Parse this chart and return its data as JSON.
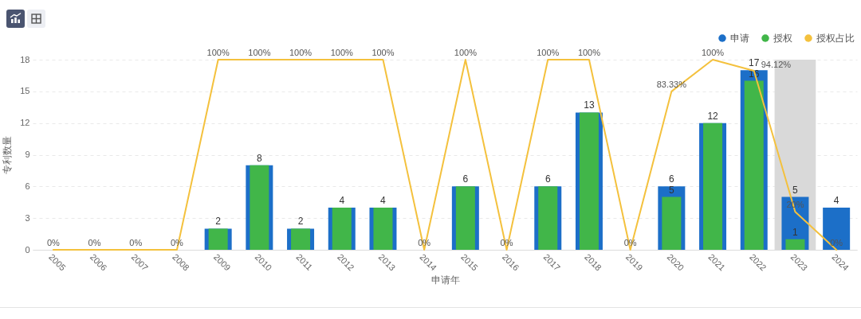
{
  "chart_data": {
    "type": "bar",
    "categories": [
      "2005",
      "2006",
      "2007",
      "2008",
      "2009",
      "2010",
      "2011",
      "2012",
      "2013",
      "2014",
      "2015",
      "2016",
      "2017",
      "2018",
      "2019",
      "2020",
      "2021",
      "2022",
      "2023",
      "2024"
    ],
    "series": [
      {
        "name": "申请",
        "color": "#1c6fc8",
        "values": [
          null,
          null,
          null,
          null,
          2,
          8,
          2,
          4,
          4,
          null,
          6,
          null,
          6,
          13,
          null,
          6,
          12,
          17,
          5,
          4
        ],
        "value_labels": [
          null,
          null,
          null,
          null,
          "2",
          "8",
          "2",
          "4",
          "4",
          null,
          "6",
          null,
          "6",
          "13",
          null,
          "6",
          "12",
          "17",
          "5",
          "4"
        ]
      },
      {
        "name": "授权",
        "color": "#41b649",
        "values": [
          null,
          null,
          null,
          null,
          2,
          8,
          2,
          4,
          4,
          null,
          6,
          null,
          6,
          13,
          null,
          5,
          12,
          16,
          1,
          null
        ],
        "value_labels": [
          null,
          null,
          null,
          null,
          null,
          null,
          null,
          null,
          null,
          null,
          null,
          null,
          null,
          null,
          null,
          "5",
          null,
          "16",
          "1",
          null
        ]
      },
      {
        "name": "授权占比",
        "type": "line",
        "axis": "y2",
        "color": "#f4c13d",
        "values": [
          0,
          0,
          0,
          0,
          100,
          100,
          100,
          100,
          100,
          0,
          100,
          0,
          100,
          100,
          0,
          83.33,
          100,
          94.12,
          20,
          0
        ],
        "value_labels": [
          "0%",
          "0%",
          "0%",
          "0%",
          "100%",
          "100%",
          "100%",
          "100%",
          "100%",
          "0%",
          "100%",
          "0%",
          "100%",
          "100%",
          "0%",
          "83.33%",
          "100%",
          "94.12%",
          "20%",
          "0%"
        ]
      }
    ],
    "xlabel": "申请年",
    "ylabel": "专利数量",
    "ylim": [
      0,
      18
    ],
    "yticks": [
      0,
      3,
      6,
      9,
      12,
      15,
      18
    ],
    "y2lim": [
      0,
      100
    ],
    "grid": "y",
    "legend": "top right",
    "bands": [
      {
        "axis": "x",
        "from": "2023",
        "to": "2023",
        "color": "#d9d9d9"
      }
    ]
  }
}
